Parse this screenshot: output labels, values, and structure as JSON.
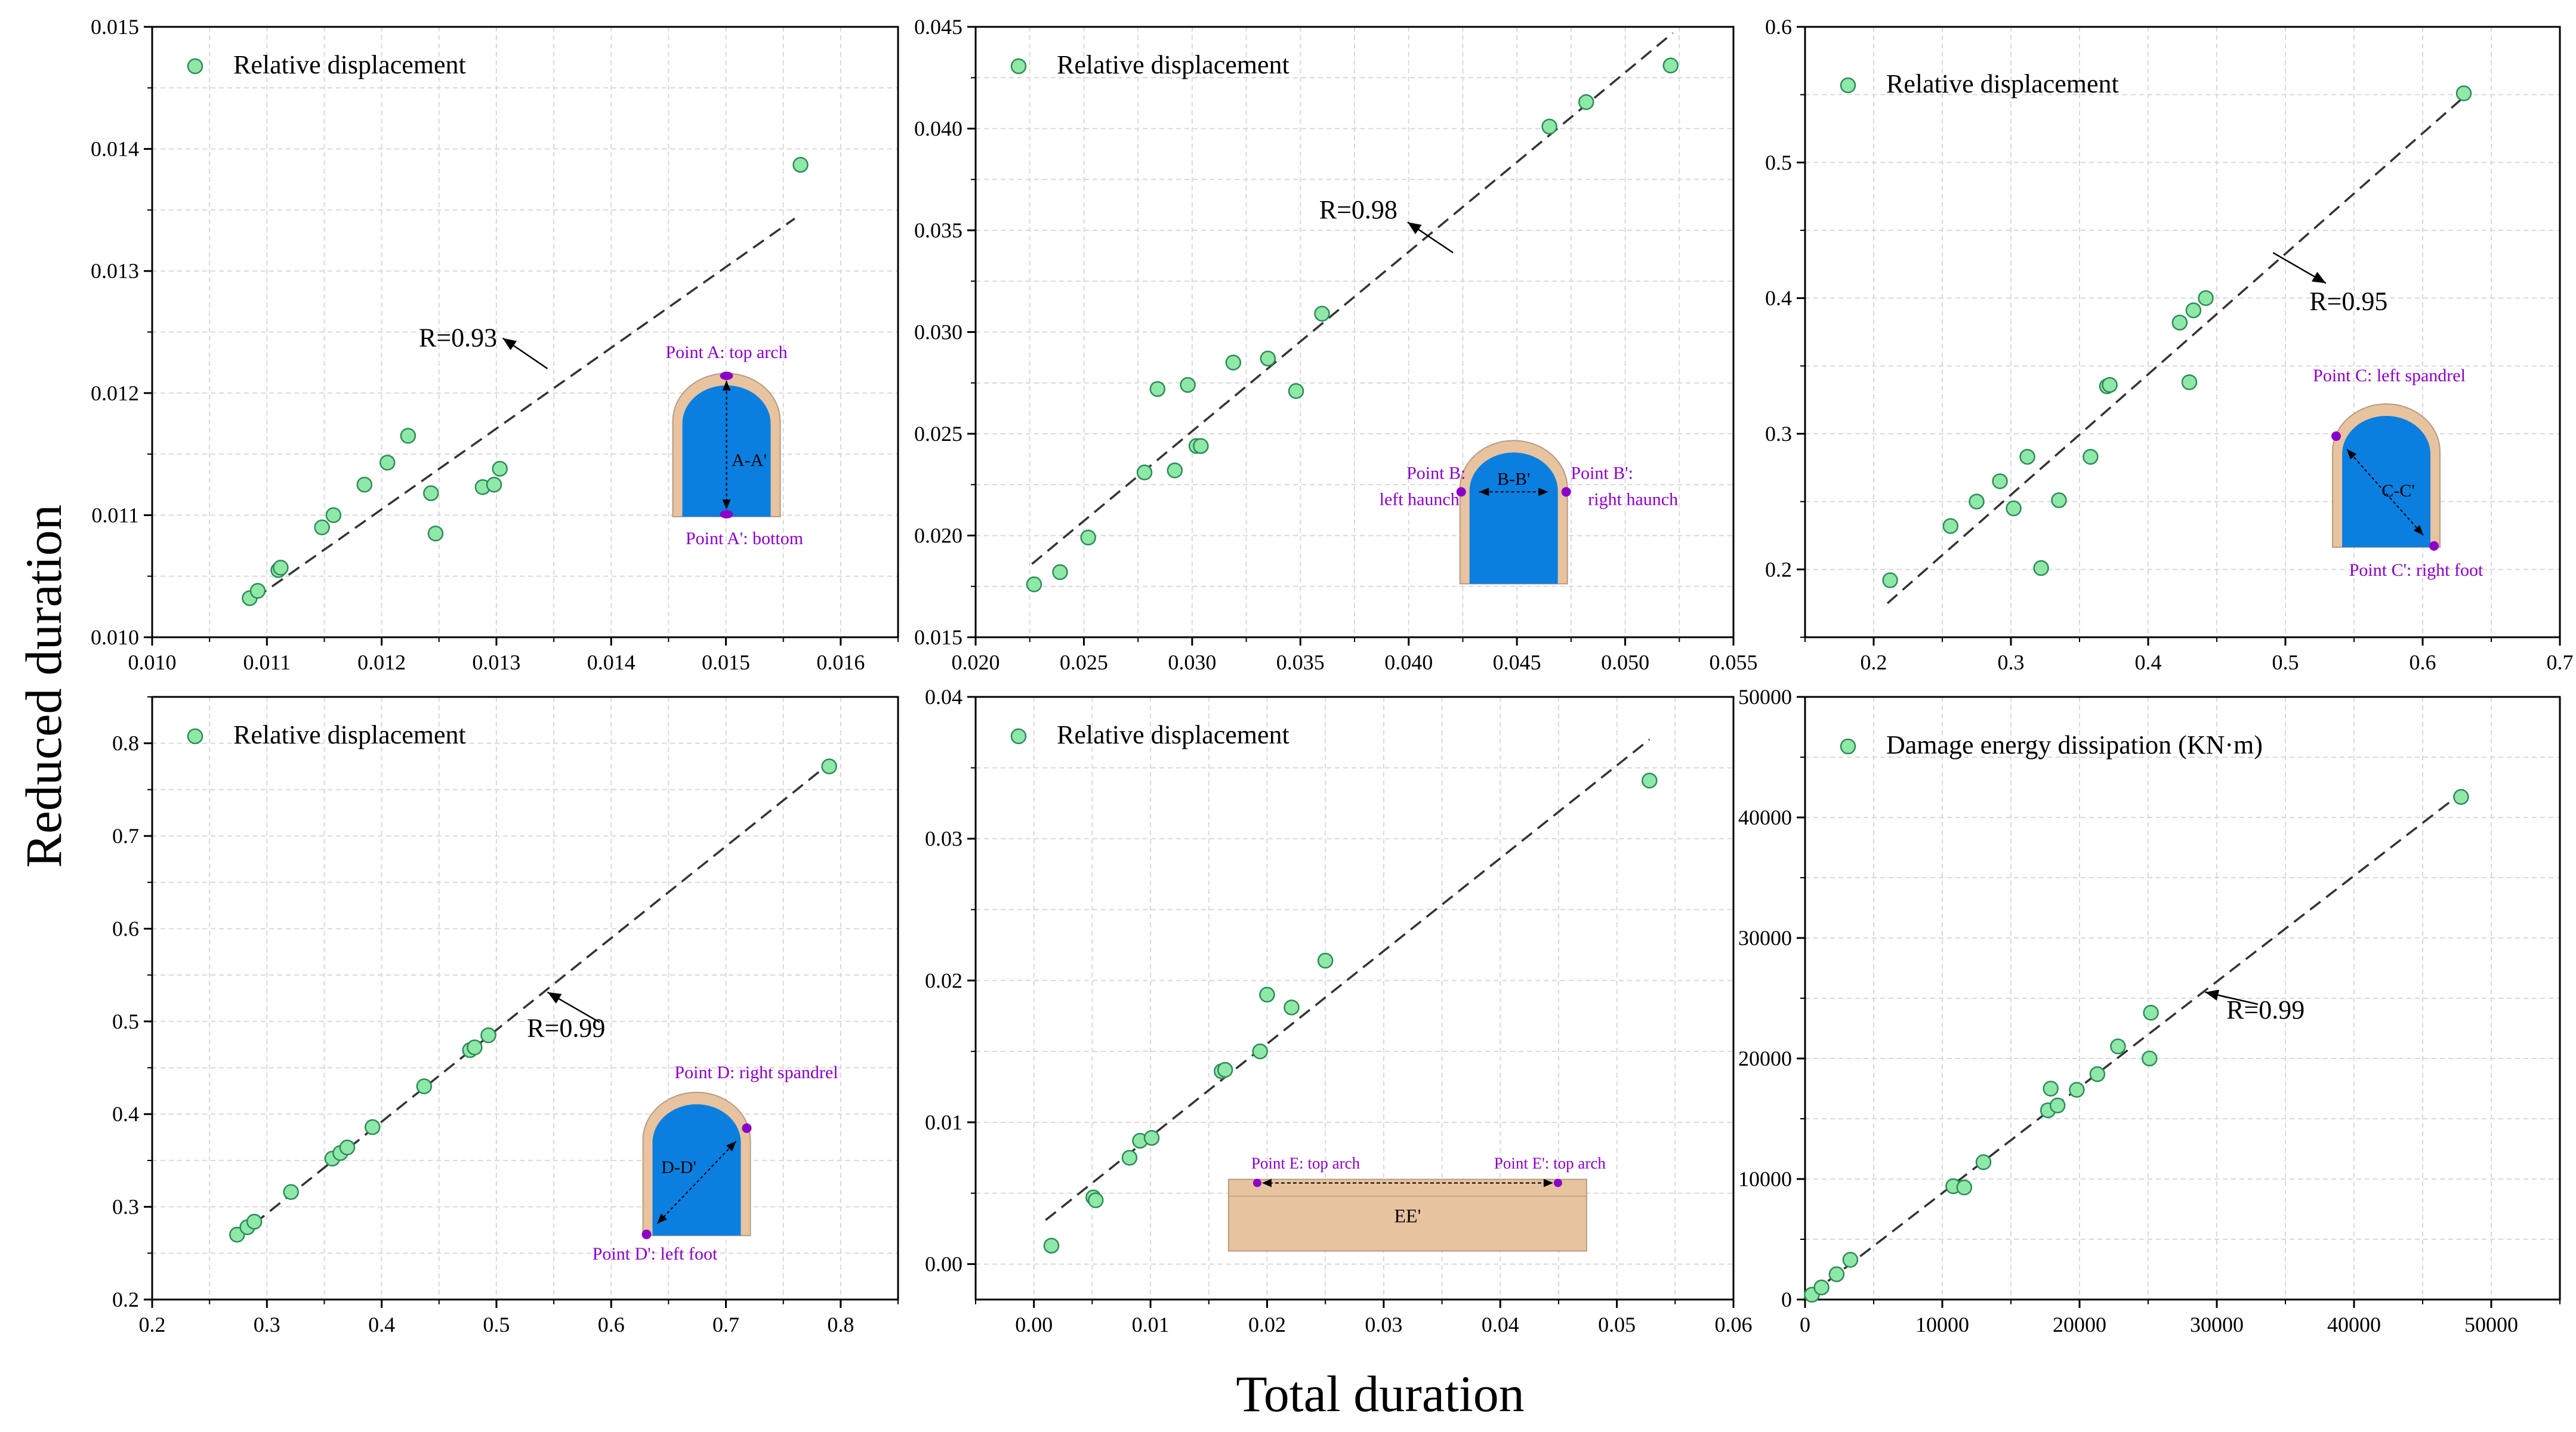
{
  "figure": {
    "ylabel": "Reduced duration",
    "xlabel": "Total duration"
  },
  "colors": {
    "marker_fill": "#8ee8a8",
    "marker_stroke": "#2e8b57",
    "fit_line": "#333333",
    "grid": "#d9d9d9",
    "annotation": "#8b00c9",
    "tunnel_blue": "#0a7fe0",
    "tunnel_lining": "#e8c3a0",
    "tunnel_outline": "#b89b80"
  },
  "chart_data": [
    {
      "type": "scatter",
      "legend": "Relative displacement",
      "r_label": "R=0.93",
      "xlim": [
        0.01,
        0.0165
      ],
      "ylim": [
        0.01,
        0.015
      ],
      "xticks": [
        "0.010",
        "0.011",
        "0.012",
        "0.013",
        "0.014",
        "0.015",
        "0.016"
      ],
      "yticks": [
        "0.010",
        "0.011",
        "0.012",
        "0.013",
        "0.014",
        "0.015"
      ],
      "x": [
        0.01085,
        0.01092,
        0.0111,
        0.01112,
        0.01148,
        0.01158,
        0.01185,
        0.01205,
        0.01223,
        0.01243,
        0.01247,
        0.01288,
        0.01298,
        0.01303,
        0.01565
      ],
      "y": [
        0.01032,
        0.01038,
        0.01055,
        0.01057,
        0.0109,
        0.011,
        0.01125,
        0.01143,
        0.01165,
        0.01118,
        0.01085,
        0.01123,
        0.01125,
        0.01138,
        0.01387
      ],
      "fit": [
        [
          0.0109,
          0.01032
        ],
        [
          0.0156,
          0.01343
        ]
      ],
      "inset": {
        "kind": "arch-vertical",
        "label_top": "Point A: top arch",
        "label_bottom": "Point A': bottom",
        "section": "A-A'"
      }
    },
    {
      "type": "scatter",
      "legend": "Relative displacement",
      "r_label": "R=0.98",
      "xlim": [
        0.02,
        0.055
      ],
      "ylim": [
        0.015,
        0.045
      ],
      "xticks": [
        "0.020",
        "0.025",
        "0.030",
        "0.035",
        "0.040",
        "0.045",
        "0.050",
        "0.055"
      ],
      "yticks": [
        "0.015",
        "0.020",
        "0.025",
        "0.030",
        "0.035",
        "0.040",
        "0.045"
      ],
      "x": [
        0.0227,
        0.0239,
        0.0252,
        0.0278,
        0.0284,
        0.0292,
        0.0298,
        0.0302,
        0.0304,
        0.0319,
        0.0335,
        0.0348,
        0.036,
        0.0465,
        0.0482,
        0.0521
      ],
      "y": [
        0.0176,
        0.0182,
        0.0199,
        0.0231,
        0.0272,
        0.0232,
        0.0274,
        0.0244,
        0.0244,
        0.0285,
        0.0287,
        0.0271,
        0.0309,
        0.0401,
        0.0413,
        0.0431
      ],
      "fit": [
        [
          0.0226,
          0.0186
        ],
        [
          0.0522,
          0.0447
        ]
      ],
      "inset": {
        "kind": "arch-horizontal",
        "label_left_1": "Point B:",
        "label_left_2": "left haunch",
        "label_right_1": "Point B':",
        "label_right_2": "right haunch",
        "section": "B-B'"
      }
    },
    {
      "type": "scatter",
      "legend": "Relative displacement",
      "r_label": "R=0.95",
      "xlim": [
        0.15,
        0.7
      ],
      "ylim": [
        0.15,
        0.6
      ],
      "xticks": [
        "0.2",
        "0.3",
        "0.4",
        "0.5",
        "0.6",
        "0.7"
      ],
      "yticks": [
        "0.2",
        "0.3",
        "0.4",
        "0.5",
        "0.6"
      ],
      "x": [
        0.212,
        0.256,
        0.275,
        0.292,
        0.302,
        0.312,
        0.322,
        0.335,
        0.358,
        0.37,
        0.372,
        0.423,
        0.43,
        0.433,
        0.442,
        0.63
      ],
      "y": [
        0.192,
        0.232,
        0.25,
        0.265,
        0.245,
        0.283,
        0.201,
        0.251,
        0.283,
        0.335,
        0.336,
        0.382,
        0.338,
        0.391,
        0.4,
        0.551
      ],
      "fit": [
        [
          0.21,
          0.175
        ],
        [
          0.632,
          0.55
        ]
      ],
      "inset": {
        "kind": "arch-diag-down",
        "label_top": "Point C: left spandrel",
        "label_bottom": "Point C': right foot",
        "section": "C-C'"
      }
    },
    {
      "type": "scatter",
      "legend": "Relative displacement",
      "r_label": "R=0.99",
      "xlim": [
        0.2,
        0.85
      ],
      "ylim": [
        0.2,
        0.85
      ],
      "xticks": [
        "0.2",
        "0.3",
        "0.4",
        "0.5",
        "0.6",
        "0.7",
        "0.8"
      ],
      "yticks": [
        "0.2",
        "0.3",
        "0.4",
        "0.5",
        "0.6",
        "0.7",
        "0.8"
      ],
      "x": [
        0.274,
        0.283,
        0.289,
        0.321,
        0.357,
        0.364,
        0.37,
        0.392,
        0.437,
        0.477,
        0.481,
        0.493,
        0.79
      ],
      "y": [
        0.27,
        0.278,
        0.284,
        0.316,
        0.352,
        0.358,
        0.364,
        0.386,
        0.43,
        0.469,
        0.472,
        0.485,
        0.775
      ],
      "fit": [
        [
          0.275,
          0.268
        ],
        [
          0.79,
          0.778
        ]
      ],
      "inset": {
        "kind": "arch-diag-up",
        "label_top": "Point D: right spandrel",
        "label_bottom": "Point D': left foot",
        "section": "D-D'"
      }
    },
    {
      "type": "scatter",
      "legend": "Relative displacement",
      "r_label": "",
      "xlim": [
        -0.005,
        0.06
      ],
      "ylim": [
        -0.0025,
        0.04
      ],
      "xticks": [
        "0.00",
        "0.01",
        "0.02",
        "0.03",
        "0.04",
        "0.05",
        "0.06"
      ],
      "xtick_values": [
        0,
        0.01,
        0.02,
        0.03,
        0.04,
        0.05,
        0.06
      ],
      "yticks": [
        "0.00",
        "0.01",
        "0.02",
        "0.03",
        "0.04"
      ],
      "ytick_values": [
        0,
        0.01,
        0.02,
        0.03,
        0.04
      ],
      "x": [
        0.0015,
        0.0051,
        0.0053,
        0.0082,
        0.0091,
        0.0101,
        0.0161,
        0.0164,
        0.0194,
        0.02,
        0.0221,
        0.025,
        0.0528
      ],
      "y": [
        0.0013,
        0.0047,
        0.0045,
        0.0075,
        0.0087,
        0.0089,
        0.0136,
        0.0137,
        0.015,
        0.019,
        0.0181,
        0.0214,
        0.0341
      ],
      "fit": [
        [
          0.001,
          0.0031
        ],
        [
          0.0528,
          0.037
        ]
      ],
      "inset": {
        "kind": "slab",
        "label_left": "Point E: top arch",
        "label_right": "Point E': top arch",
        "section": "EE'"
      }
    },
    {
      "type": "scatter",
      "legend": "Damage energy dissipation (KN·m)",
      "r_label": "R=0.99",
      "xlim": [
        0,
        55000
      ],
      "ylim": [
        0,
        50000
      ],
      "xticks": [
        "0",
        "10000",
        "20000",
        "30000",
        "40000",
        "50000"
      ],
      "yticks": [
        "0",
        "10000",
        "20000",
        "30000",
        "40000",
        "50000"
      ],
      "x": [
        500,
        1200,
        2300,
        3300,
        10800,
        11600,
        13000,
        17700,
        17900,
        18400,
        19800,
        21300,
        22800,
        25100,
        25200,
        47800
      ],
      "y": [
        400,
        1000,
        2100,
        3300,
        9400,
        9300,
        11400,
        15700,
        17500,
        16100,
        17400,
        18700,
        21000,
        20000,
        23800,
        41700
      ],
      "fit": [
        [
          500,
          500
        ],
        [
          47800,
          42000
        ]
      ]
    }
  ]
}
